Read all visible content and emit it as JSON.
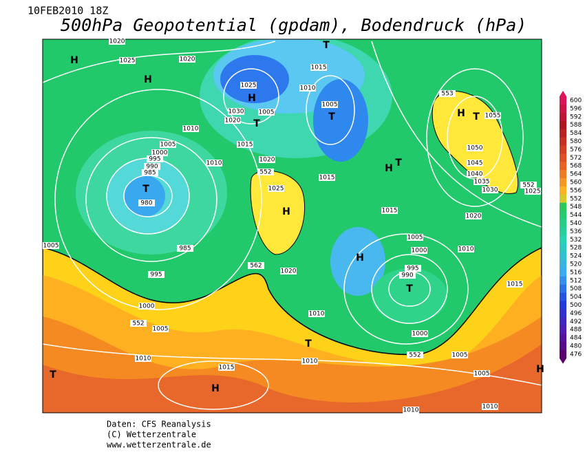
{
  "header": {
    "date": "10FEB2010 18Z",
    "title": "500hPa Geopotential (gpdam), Bodendruck (hPa)"
  },
  "map": {
    "centers": [
      "H",
      "H",
      "T",
      "H",
      "T",
      "T",
      "H",
      "T",
      "H",
      "T",
      "T",
      "H",
      "H",
      "T",
      "T",
      "T",
      "H",
      "H"
    ],
    "isobars": [
      "1020",
      "1025",
      "1020",
      "1025",
      "1030",
      "1020",
      "1005",
      "1010",
      "1015",
      "1005",
      "1010",
      "1005",
      "1000",
      "995",
      "990",
      "985",
      "980",
      "1015",
      "1010",
      "1020",
      "552",
      "1025",
      "985",
      "995",
      "1005",
      "1000",
      "552",
      "1005",
      "562",
      "1020",
      "1010",
      "1015",
      "1015",
      "553",
      "1055",
      "1050",
      "1045",
      "1040",
      "1035",
      "1030",
      "552",
      "1025",
      "1020",
      "1005",
      "1000",
      "1010",
      "995",
      "990",
      "1015",
      "1000",
      "552",
      "1005",
      "1005",
      "1010",
      "1010",
      "1015",
      "1010",
      "1010"
    ]
  },
  "colorbar": {
    "labels": [
      600,
      596,
      592,
      588,
      584,
      580,
      576,
      572,
      568,
      564,
      560,
      556,
      552,
      548,
      544,
      540,
      536,
      532,
      528,
      524,
      520,
      516,
      512,
      508,
      504,
      500,
      496,
      492,
      488,
      484,
      480,
      476
    ]
  },
  "footer": {
    "source": "Daten: CFS Reanalysis",
    "copyright": "(C) Wetterzentrale",
    "url": "www.wetterzentrale.de"
  }
}
